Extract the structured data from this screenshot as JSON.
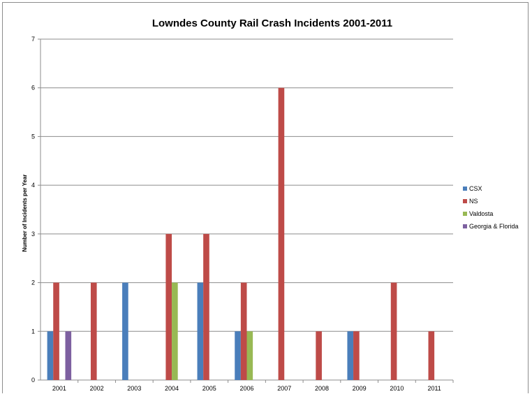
{
  "chart_data": {
    "type": "bar",
    "title": "Lowndes County Rail Crash Incidents 2001-2011",
    "xlabel": "",
    "ylabel": "Number of Incidents per Year",
    "categories": [
      "2001",
      "2002",
      "2003",
      "2004",
      "2005",
      "2006",
      "2007",
      "2008",
      "2009",
      "2010",
      "2011"
    ],
    "series": [
      {
        "name": "CSX",
        "color": "#4a7ebb",
        "values": [
          1,
          0,
          2,
          0,
          2,
          1,
          0,
          0,
          1,
          0,
          0
        ]
      },
      {
        "name": "NS",
        "color": "#be4b48",
        "values": [
          2,
          2,
          0,
          3,
          3,
          2,
          6,
          1,
          1,
          2,
          1
        ]
      },
      {
        "name": "Valdosta",
        "color": "#98b954",
        "values": [
          0,
          0,
          0,
          2,
          0,
          1,
          0,
          0,
          0,
          0,
          0
        ]
      },
      {
        "name": "Georgia & Florida",
        "color": "#7d60a0",
        "values": [
          1,
          0,
          0,
          0,
          0,
          0,
          0,
          0,
          0,
          0,
          0
        ]
      }
    ],
    "ylim": [
      0,
      7
    ],
    "yticks": [
      "0",
      "1",
      "2",
      "3",
      "4",
      "5",
      "6",
      "7"
    ],
    "grid": true,
    "legend_position": "right"
  }
}
